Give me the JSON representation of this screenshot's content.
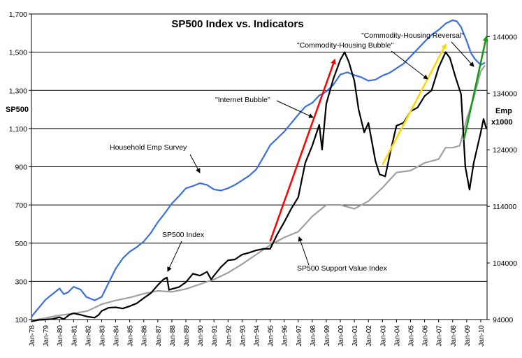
{
  "chart_data": {
    "type": "line",
    "title": "SP500 Index vs. Indicators",
    "ylabel": "SP500",
    "y2label_line1": "Emp",
    "y2label_line2": "x1000",
    "ylim": [
      100,
      1700
    ],
    "y2lim": [
      94000,
      148000
    ],
    "yticks": [
      "100",
      "300",
      "500",
      "700",
      "900",
      "1,100",
      "1,300",
      "1,500",
      "1,700"
    ],
    "y2ticks": [
      "94000",
      "104000",
      "114000",
      "124000",
      "134000",
      "144000"
    ],
    "xticks": [
      "Jan-78",
      "Jan-79",
      "Jan-80",
      "Jan-81",
      "Jan-82",
      "Jan-83",
      "Jan-84",
      "Jan-85",
      "Jan-86",
      "Jan-87",
      "Jan-88",
      "Jan-89",
      "Jan-90",
      "Jan-91",
      "Jan-92",
      "Jan-93",
      "Jan-94",
      "Jan-95",
      "Jan-96",
      "Jan-97",
      "Jan-98",
      "Jan-99",
      "Jan-00",
      "Jan-01",
      "Jan-02",
      "Jan-03",
      "Jan-04",
      "Jan-05",
      "Jan-06",
      "Jan-07",
      "Jan-08",
      "Jan-09",
      "Jan-10"
    ],
    "grid": "horizontal",
    "series": [
      {
        "name": "Household Emp Survey",
        "axis": "right",
        "color": "#3a6fe0",
        "x": [
          1978,
          1978.5,
          1979,
          1979.5,
          1980,
          1980.3,
          1980.6,
          1981,
          1981.5,
          1981.9,
          1982.5,
          1983,
          1983.5,
          1984,
          1984.5,
          1985,
          1985.5,
          1986,
          1986.5,
          1987,
          1987.5,
          1988,
          1988.5,
          1989,
          1989.5,
          1990,
          1990.5,
          1991,
          1991.5,
          1992,
          1992.5,
          1993,
          1993.5,
          1994,
          1994.5,
          1995,
          1995.5,
          1996,
          1996.5,
          1997,
          1997.5,
          1998,
          1998.5,
          1999,
          1999.5,
          2000,
          2000.5,
          2001,
          2001.5,
          2002,
          2002.5,
          2003,
          2003.5,
          2004,
          2004.5,
          2005,
          2005.5,
          2006,
          2006.5,
          2007,
          2007.5,
          2008,
          2008.3,
          2008.6,
          2009,
          2009.3,
          2009.6,
          2010,
          2010.3
        ],
        "values": [
          94500,
          96000,
          97500,
          98500,
          99500,
          98500,
          98800,
          99800,
          99300,
          98000,
          97400,
          98000,
          100500,
          103000,
          104800,
          106000,
          106800,
          107800,
          109300,
          111200,
          112800,
          114500,
          115800,
          117200,
          117600,
          118100,
          117800,
          117000,
          116800,
          117200,
          117800,
          118600,
          119400,
          120500,
          122600,
          124800,
          126000,
          127200,
          128700,
          130200,
          131600,
          132300,
          133600,
          134300,
          135500,
          137300,
          137700,
          137200,
          136800,
          136200,
          136400,
          137100,
          137600,
          138400,
          139200,
          140500,
          141800,
          143100,
          144300,
          145200,
          146300,
          146900,
          146700,
          145700,
          143200,
          141100,
          140000,
          139000,
          139400
        ]
      },
      {
        "name": "SP500 Index",
        "axis": "left",
        "color": "#000000",
        "x": [
          1978,
          1978.5,
          1979,
          1979.5,
          1980,
          1980.3,
          1980.7,
          1981,
          1981.5,
          1982,
          1982.5,
          1982.8,
          1983,
          1983.5,
          1984,
          1984.5,
          1985,
          1985.5,
          1986,
          1986.5,
          1987,
          1987.4,
          1987.65,
          1987.8,
          1988,
          1988.5,
          1989,
          1989.5,
          1990,
          1990.5,
          1990.8,
          1991,
          1991.5,
          1992,
          1992.5,
          1993,
          1993.5,
          1994,
          1994.5,
          1995,
          1995.5,
          1996,
          1996.5,
          1997,
          1997.5,
          1998,
          1998.5,
          1998.7,
          1999,
          1999.5,
          2000,
          2000.3,
          2000.6,
          2001,
          2001.3,
          2001.7,
          2002,
          2002.5,
          2002.8,
          2003.2,
          2003.6,
          2004,
          2004.5,
          2005,
          2005.5,
          2006,
          2006.5,
          2007,
          2007.5,
          2007.8,
          2008.2,
          2008.6,
          2008.9,
          2009.2,
          2009.5,
          2010,
          2010.2,
          2010.4
        ],
        "values": [
          90,
          98,
          100,
          103,
          112,
          102,
          125,
          133,
          125,
          115,
          110,
          125,
          145,
          162,
          164,
          158,
          170,
          185,
          212,
          238,
          280,
          310,
          320,
          255,
          260,
          270,
          295,
          340,
          330,
          350,
          310,
          330,
          375,
          410,
          415,
          440,
          450,
          462,
          470,
          470,
          545,
          610,
          680,
          740,
          920,
          1010,
          1120,
          990,
          1230,
          1360,
          1460,
          1500,
          1450,
          1350,
          1200,
          1080,
          1130,
          930,
          860,
          850,
          990,
          1115,
          1130,
          1190,
          1210,
          1270,
          1300,
          1420,
          1500,
          1470,
          1370,
          1280,
          900,
          780,
          920,
          1080,
          1150,
          1100
        ]
      },
      {
        "name": "SP500 Support Value Index",
        "axis": "left",
        "color": "#a0a0a0",
        "x": [
          1978,
          1979,
          1980,
          1981,
          1982,
          1983,
          1984,
          1985,
          1986,
          1987,
          1988,
          1989,
          1990,
          1991,
          1992,
          1993,
          1994,
          1995,
          1996,
          1997,
          1998,
          1999,
          2000,
          2001,
          2002,
          2003,
          2004,
          2005,
          2006,
          2007,
          2007.5,
          2008,
          2008.5,
          2009,
          2009.5,
          2010,
          2010.3
        ],
        "values": [
          95,
          108,
          122,
          132,
          145,
          180,
          200,
          215,
          235,
          250,
          245,
          260,
          285,
          310,
          345,
          390,
          440,
          490,
          530,
          560,
          640,
          700,
          700,
          680,
          720,
          790,
          870,
          880,
          920,
          940,
          1000,
          1000,
          1010,
          1150,
          1260,
          1400,
          1430
        ]
      }
    ],
    "annotations": [
      {
        "text": "\"Internet Bubble\""
      },
      {
        "text": "\"Commodity-Housing Bubble\""
      },
      {
        "text": "\"Commodity-Housing Reversal\""
      },
      {
        "text": "Household Emp Survey"
      },
      {
        "text": "SP500 Index"
      },
      {
        "text": "SP500 Support Value Index"
      }
    ],
    "trend_arrows": [
      {
        "from_x": 1995,
        "from_y": 510,
        "to_x": 1999.6,
        "to_y": 1460,
        "color": "#ff0000"
      },
      {
        "from_x": 2003,
        "from_y": 910,
        "to_x": 2007.5,
        "to_y": 1540,
        "color": "#ffd700"
      },
      {
        "from_x": 2008.8,
        "from_y": 1040,
        "to_x": 2010.4,
        "to_y": 1580,
        "color": "#119911"
      }
    ]
  }
}
